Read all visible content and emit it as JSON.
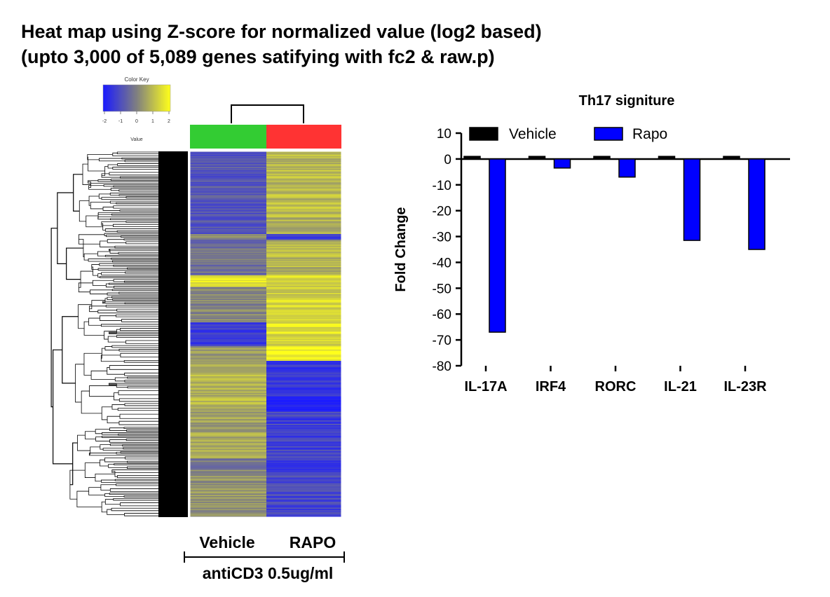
{
  "figure": {
    "title_line1": "Heat map using Z-score for normalized value (log2 based)",
    "title_line2": "(upto 3,000 of 5,089 genes satifying with fc2 & raw.p)"
  },
  "chart_data": [
    {
      "type": "heatmap",
      "color_key": {
        "title": "Color Key",
        "value_label": "Value",
        "ticks": [
          "-2",
          "-1",
          "0",
          "1",
          "2"
        ],
        "colors": {
          "low": "#1a1aff",
          "mid": "#7f7f80",
          "high": "#ffff1a"
        }
      },
      "column_annotation_colors": [
        "#33cc33",
        "#ff3333"
      ],
      "columns": [
        "Vehicle",
        "RAPO"
      ],
      "group_label": "antiCD3 0.5ug/ml",
      "blocks": [
        {
          "rows": 140,
          "Vehicle": -0.8,
          "RAPO": 0.9
        },
        {
          "rows": 10,
          "Vehicle": 0.3,
          "RAPO": -1.5
        },
        {
          "rows": 60,
          "Vehicle": -0.3,
          "RAPO": 0.8
        },
        {
          "rows": 20,
          "Vehicle": 1.6,
          "RAPO": 1.4
        },
        {
          "rows": 60,
          "Vehicle": 0.1,
          "RAPO": 1.3
        },
        {
          "rows": 40,
          "Vehicle": -1.3,
          "RAPO": 1.5
        },
        {
          "rows": 25,
          "Vehicle": 0.4,
          "RAPO": 1.9
        },
        {
          "rows": 60,
          "Vehicle": 0.9,
          "RAPO": -1.4
        },
        {
          "rows": 25,
          "Vehicle": 0.8,
          "RAPO": -2.0
        },
        {
          "rows": 80,
          "Vehicle": 0.6,
          "RAPO": -1.2
        },
        {
          "rows": 20,
          "Vehicle": -0.2,
          "RAPO": -1.3
        },
        {
          "rows": 80,
          "Vehicle": 0.3,
          "RAPO": -1.1
        }
      ]
    },
    {
      "type": "bar",
      "title": "Th17 signiture",
      "ylabel": "Fold Change",
      "xlabel": "",
      "categories": [
        "IL-17A",
        "IRF4",
        "RORC",
        "IL-21",
        "IL-23R"
      ],
      "series": [
        {
          "name": "Vehicle",
          "color": "#000000",
          "values": [
            1,
            1,
            1,
            1,
            1
          ]
        },
        {
          "name": "Rapo",
          "color": "#0000ff",
          "values": [
            -67,
            -3.5,
            -7,
            -31.5,
            -35
          ]
        }
      ],
      "ylim": [
        -80,
        10
      ],
      "yticks": [
        10,
        0,
        -10,
        -20,
        -30,
        -40,
        -50,
        -60,
        -70,
        -80
      ],
      "legend_position": "top"
    }
  ]
}
